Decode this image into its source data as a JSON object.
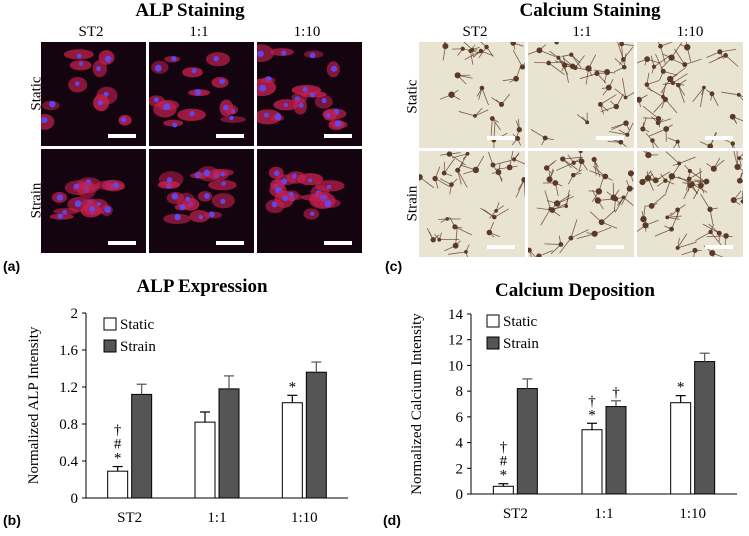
{
  "panels": {
    "a": {
      "label": "(a)",
      "title": "ALP Staining",
      "columns": [
        "ST2",
        "1:1",
        "1:10"
      ],
      "rows": [
        "Static",
        "Strain"
      ],
      "image_style": "fluorescence-red-blue"
    },
    "c": {
      "label": "(c)",
      "title": "Calcium Staining",
      "columns": [
        "ST2",
        "1:1",
        "1:10"
      ],
      "rows": [
        "Static",
        "Strain"
      ],
      "image_style": "brightfield-brown"
    },
    "b": {
      "label": "(b)"
    },
    "d": {
      "label": "(d)"
    }
  },
  "colors": {
    "strain_bar": "#555555",
    "static_bar": "#ffffff",
    "fluor_bg": "#14040f",
    "fluor_cell": "#c2204e",
    "fluor_nucleus": "#5a4cff",
    "bright_bg": "#e9e3d2",
    "bright_cell": "#5a3a26"
  },
  "chart_data": [
    {
      "type": "bar",
      "title": "ALP Expression",
      "ylabel": "Normalized ALP Intensity",
      "xlabel": "",
      "categories": [
        "ST2",
        "1:1",
        "1:10"
      ],
      "ylim": [
        0,
        2
      ],
      "yticks": [
        "0",
        "0.4",
        "0.8",
        "1.2",
        "1.6",
        "2"
      ],
      "legend": "top-left",
      "grid": false,
      "series": [
        {
          "name": "Static",
          "values": [
            0.29,
            0.82,
            1.03
          ],
          "errors": [
            0.05,
            0.11,
            0.08
          ],
          "color": "#ffffff"
        },
        {
          "name": "Strain",
          "values": [
            1.12,
            1.18,
            1.36
          ],
          "errors": [
            0.11,
            0.14,
            0.11
          ],
          "color": "#555555"
        }
      ],
      "annotations": [
        {
          "category": 0,
          "series": 0,
          "text": "*"
        },
        {
          "category": 0,
          "series": 0,
          "text": "#"
        },
        {
          "category": 0,
          "series": 0,
          "text": "†"
        },
        {
          "category": 2,
          "series": 0,
          "text": "*"
        }
      ]
    },
    {
      "type": "bar",
      "title": "Calcium Deposition",
      "ylabel": "Normalized Calcium Intensity",
      "xlabel": "",
      "categories": [
        "ST2",
        "1:1",
        "1:10"
      ],
      "ylim": [
        0,
        14
      ],
      "yticks": [
        "0",
        "2",
        "4",
        "6",
        "8",
        "10",
        "12",
        "14"
      ],
      "legend": "top-left",
      "grid": false,
      "series": [
        {
          "name": "Static",
          "values": [
            0.6,
            5.0,
            7.1
          ],
          "errors": [
            0.2,
            0.5,
            0.55
          ],
          "color": "#ffffff"
        },
        {
          "name": "Strain",
          "values": [
            8.2,
            6.8,
            10.3
          ],
          "errors": [
            0.75,
            0.45,
            0.65
          ],
          "color": "#555555"
        }
      ],
      "annotations": [
        {
          "category": 0,
          "series": 0,
          "text": "*"
        },
        {
          "category": 0,
          "series": 0,
          "text": "#"
        },
        {
          "category": 0,
          "series": 0,
          "text": "†"
        },
        {
          "category": 1,
          "series": 0,
          "text": "*"
        },
        {
          "category": 1,
          "series": 0,
          "text": "†"
        },
        {
          "category": 1,
          "series": 1,
          "text": "†"
        },
        {
          "category": 2,
          "series": 0,
          "text": "*"
        }
      ]
    }
  ]
}
